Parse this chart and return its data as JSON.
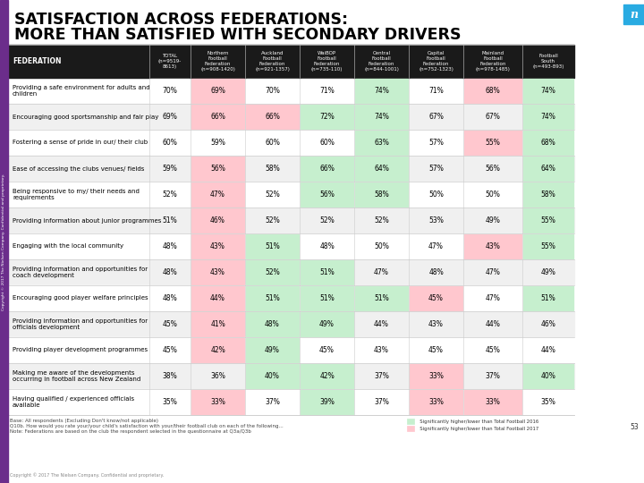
{
  "title_line1": "SATISFACTION ACROSS FEDERATIONS:",
  "title_line2": "MORE THAN SATISFIED WITH SECONDARY DRIVERS",
  "col_headers": [
    "FEDERATION",
    "TOTAL\n(n=9519-\n8613)",
    "Northern\nFootball\nFederation\n(n=908-1420)",
    "Auckland\nFootball\nFederation\n(n=921-1357)",
    "WaiBOP\nFootball\nFederation\n(n=735-110)",
    "Central\nFootball\nFederation\n(n=844-1001)",
    "Capital\nFootball\nFederation\n(n=752-1323)",
    "Mainland\nFootball\nFederation\n(n=978-1485)",
    "Football\nSouth\n(n=493-893)"
  ],
  "rows": [
    {
      "label": "Providing a safe environment for adults and\nchildren",
      "values": [
        "70%",
        "69%",
        "70%",
        "71%",
        "74%",
        "71%",
        "68%",
        "74%"
      ],
      "colors": [
        "",
        "pink",
        "",
        "",
        "green",
        "",
        "pink",
        "green"
      ]
    },
    {
      "label": "Encouraging good sportsmanship and fair play",
      "values": [
        "69%",
        "66%",
        "66%",
        "72%",
        "74%",
        "67%",
        "67%",
        "74%"
      ],
      "colors": [
        "",
        "pink",
        "pink",
        "green",
        "green",
        "",
        "",
        "green"
      ]
    },
    {
      "label": "Fostering a sense of pride in our/ their club",
      "values": [
        "60%",
        "59%",
        "60%",
        "60%",
        "63%",
        "57%",
        "55%",
        "68%"
      ],
      "colors": [
        "",
        "",
        "",
        "",
        "green",
        "",
        "pink",
        "green"
      ]
    },
    {
      "label": "Ease of accessing the clubs venues/ fields",
      "values": [
        "59%",
        "56%",
        "58%",
        "66%",
        "64%",
        "57%",
        "56%",
        "64%"
      ],
      "colors": [
        "",
        "pink",
        "",
        "green",
        "green",
        "",
        "",
        "green"
      ]
    },
    {
      "label": "Being responsive to my/ their needs and\nrequirements",
      "values": [
        "52%",
        "47%",
        "52%",
        "56%",
        "58%",
        "50%",
        "50%",
        "58%"
      ],
      "colors": [
        "",
        "pink",
        "",
        "green",
        "green",
        "",
        "",
        "green"
      ]
    },
    {
      "label": "Providing information about junior programmes",
      "values": [
        "51%",
        "46%",
        "52%",
        "52%",
        "52%",
        "53%",
        "49%",
        "55%"
      ],
      "colors": [
        "",
        "pink",
        "",
        "",
        "",
        "",
        "",
        "green"
      ]
    },
    {
      "label": "Engaging with the local community",
      "values": [
        "48%",
        "43%",
        "51%",
        "48%",
        "50%",
        "47%",
        "43%",
        "55%"
      ],
      "colors": [
        "",
        "pink",
        "green",
        "",
        "",
        "",
        "pink",
        "green"
      ]
    },
    {
      "label": "Providing information and opportunities for\ncoach development",
      "values": [
        "48%",
        "43%",
        "52%",
        "51%",
        "47%",
        "48%",
        "47%",
        "49%"
      ],
      "colors": [
        "",
        "pink",
        "green",
        "green",
        "",
        "",
        "",
        ""
      ]
    },
    {
      "label": "Encouraging good player welfare principles",
      "values": [
        "48%",
        "44%",
        "51%",
        "51%",
        "51%",
        "45%",
        "47%",
        "51%"
      ],
      "colors": [
        "",
        "pink",
        "green",
        "green",
        "green",
        "pink",
        "",
        "green"
      ]
    },
    {
      "label": "Providing information and opportunities for\nofficials development",
      "values": [
        "45%",
        "41%",
        "48%",
        "49%",
        "44%",
        "43%",
        "44%",
        "46%"
      ],
      "colors": [
        "",
        "pink",
        "green",
        "green",
        "",
        "",
        "",
        ""
      ]
    },
    {
      "label": "Providing player development programmes",
      "values": [
        "45%",
        "42%",
        "49%",
        "45%",
        "43%",
        "45%",
        "45%",
        "44%"
      ],
      "colors": [
        "",
        "pink",
        "green",
        "",
        "",
        "",
        "",
        ""
      ]
    },
    {
      "label": "Making me aware of the developments\noccurring in football across New Zealand",
      "values": [
        "38%",
        "36%",
        "40%",
        "42%",
        "37%",
        "33%",
        "37%",
        "40%"
      ],
      "colors": [
        "",
        "",
        "green",
        "green",
        "",
        "pink",
        "",
        "green"
      ]
    },
    {
      "label": "Having qualified / experienced officials\navailable",
      "values": [
        "35%",
        "33%",
        "37%",
        "39%",
        "37%",
        "33%",
        "33%",
        "35%"
      ],
      "colors": [
        "",
        "pink",
        "",
        "green",
        "",
        "pink",
        "pink",
        ""
      ]
    }
  ],
  "footer_line1": "Base: All respondents (Excluding Don't know/not applicable)",
  "footer_line2": "Q10b. How would you rate your/your child's satisfaction with your/their football club on each of the following...",
  "footer_line3": "Note: Federations are based on the club the respondent selected in the questionnaire at Q3a/Q3b",
  "legend_text1": "  Significantly higher/lower than Total Football 2016",
  "legend_text2": "  Significantly higher/lower than Total Football 2017",
  "bg_color": "#ffffff",
  "header_bg": "#1a1a1a",
  "header_text_color": "#ffffff",
  "white_row": "#ffffff",
  "alt_row_color": "#f0f0f0",
  "green_color": "#c6efce",
  "pink_color": "#ffc7ce",
  "side_bar_color": "#6b2d8b",
  "nielsen_box_color": "#29abe2",
  "grid_color": "#cccccc"
}
